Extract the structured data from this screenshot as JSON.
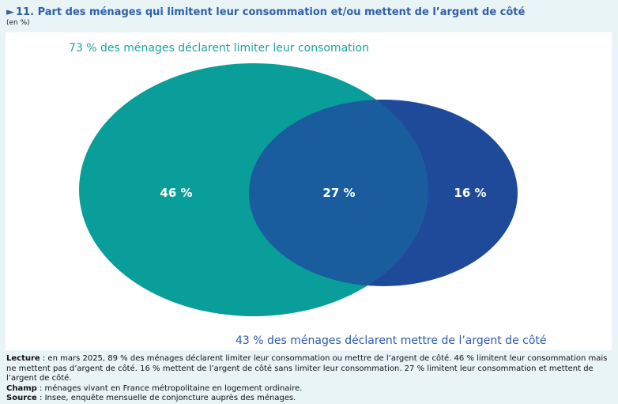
{
  "header": {
    "number": "11.",
    "title": "Part des ménages qui limitent leur consommation et/ou mettent de l’argent de côté",
    "unit": "(en %)"
  },
  "chart_data": {
    "type": "venn",
    "unit": "%",
    "sets": [
      {
        "name": "Limiter leur consommation",
        "label": "73 % des ménages déclarent limiter leur consomation",
        "total": 73,
        "only": 46,
        "color": "#0a9e9b"
      },
      {
        "name": "Mettre de l’argent de côté",
        "label": "43 % des ménages déclarent mettre de l’argent de côté",
        "total": 43,
        "only": 16,
        "color": "#1f4a9a"
      }
    ],
    "intersection": 27,
    "intersection_color": "#1a5d9e",
    "region_labels": {
      "left_only": "46 %",
      "intersection": "27 %",
      "right_only": "16 %"
    }
  },
  "notes": {
    "lecture_label": "Lecture",
    "lecture_text": " : en mars 2025, 89 % des ménages déclarent limiter leur consommation ou mettre de l’argent de côté. 46 % limitent leur consommation mais ne mettent pas d’argent de côté. 16 % mettent de l’argent de côté sans limiter leur consommation. 27 % limitent leur consommation et mettent de l’argent de côté.",
    "champ_label": "Champ",
    "champ_text": " : ménages vivant en France métropolitaine en logement ordinaire.",
    "source_label": "Source",
    "source_text": " : Insee, enquête mensuelle de conjoncture auprès des ménages."
  }
}
